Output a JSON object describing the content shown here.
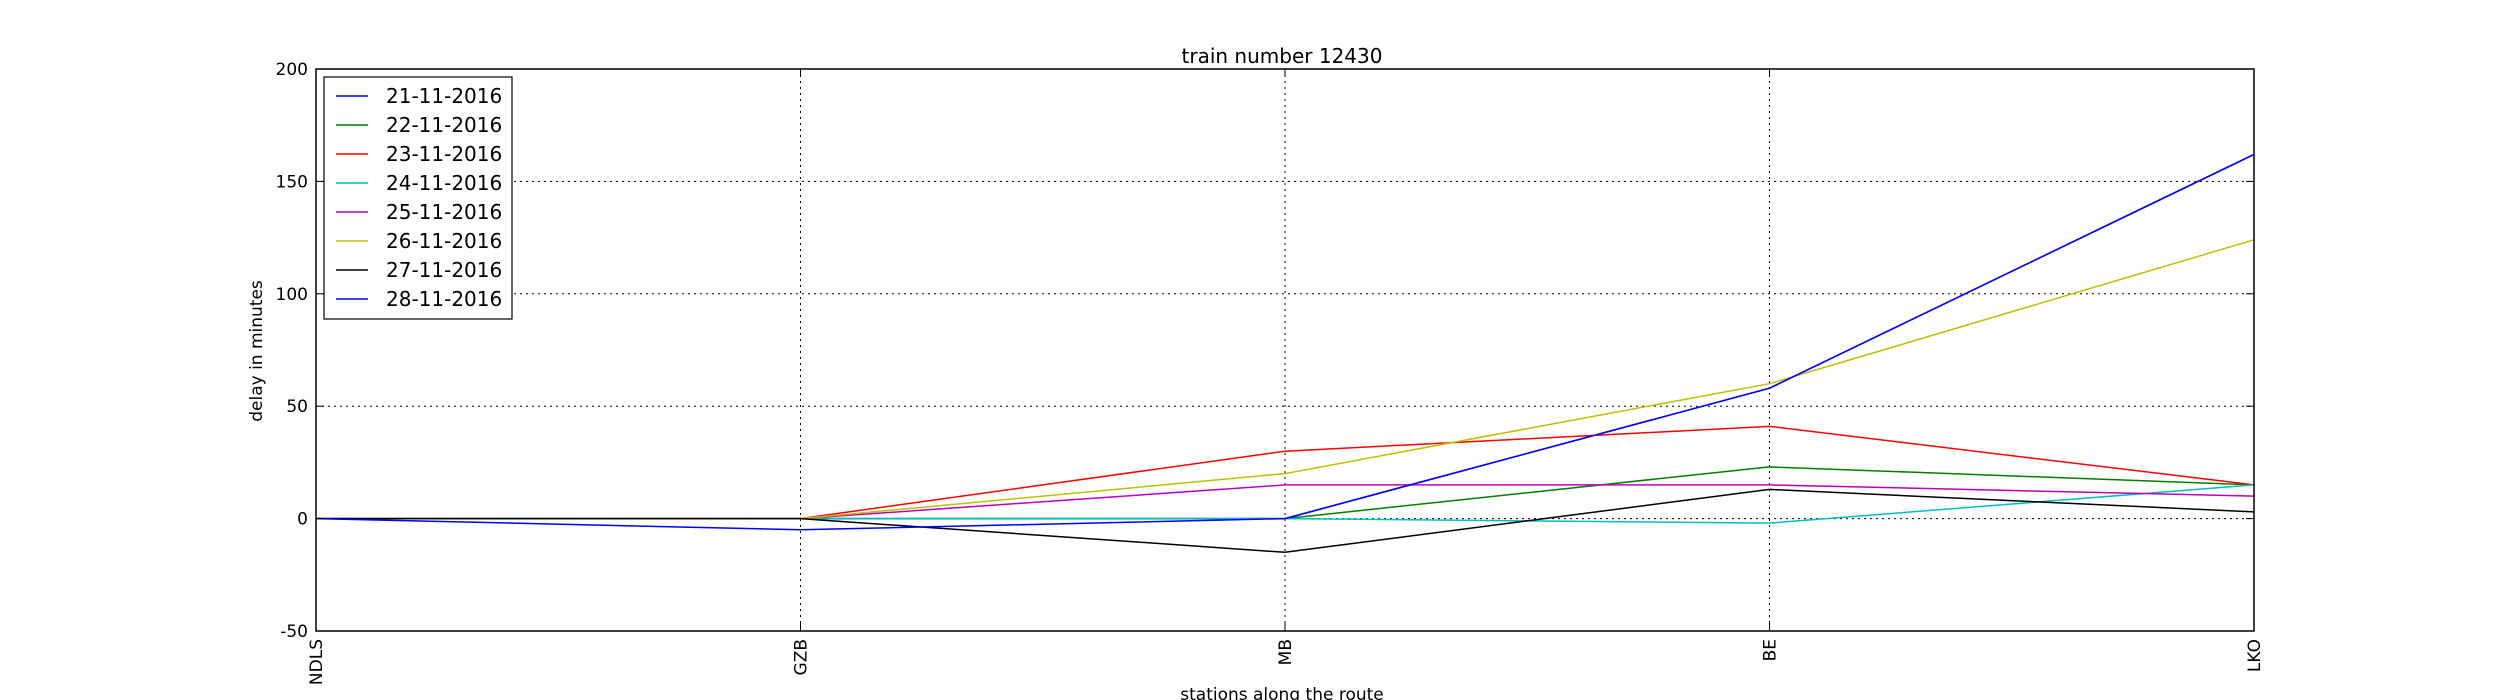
{
  "chart_data": {
    "type": "line",
    "title": "train number 12430",
    "xlabel": "stations along the route",
    "ylabel": "delay in minutes",
    "categories": [
      "NDLS",
      "GZB",
      "MB",
      "BE",
      "LKO"
    ],
    "ylim": [
      -50,
      200
    ],
    "yticks": [
      -50,
      0,
      50,
      100,
      150,
      200
    ],
    "grid": true,
    "legend_position": "top-left",
    "series": [
      {
        "name": "21-11-2016",
        "color": "#0000ff",
        "values": [
          0,
          0,
          0,
          58,
          162
        ]
      },
      {
        "name": "22-11-2016",
        "color": "#008000",
        "values": [
          0,
          0,
          0,
          23,
          15
        ]
      },
      {
        "name": "23-11-2016",
        "color": "#ff0000",
        "values": [
          0,
          0,
          30,
          41,
          15
        ]
      },
      {
        "name": "24-11-2016",
        "color": "#00bfbf",
        "values": [
          0,
          0,
          0,
          -2,
          15
        ]
      },
      {
        "name": "25-11-2016",
        "color": "#bf00bf",
        "values": [
          0,
          0,
          15,
          15,
          10
        ]
      },
      {
        "name": "26-11-2016",
        "color": "#bfbf00",
        "values": [
          0,
          0,
          20,
          60,
          124
        ]
      },
      {
        "name": "27-11-2016",
        "color": "#000000",
        "values": [
          0,
          0,
          -15,
          13,
          3
        ]
      },
      {
        "name": "28-11-2016",
        "color": "#0000ff",
        "values": [
          0,
          -5,
          0,
          58,
          162
        ]
      }
    ]
  }
}
